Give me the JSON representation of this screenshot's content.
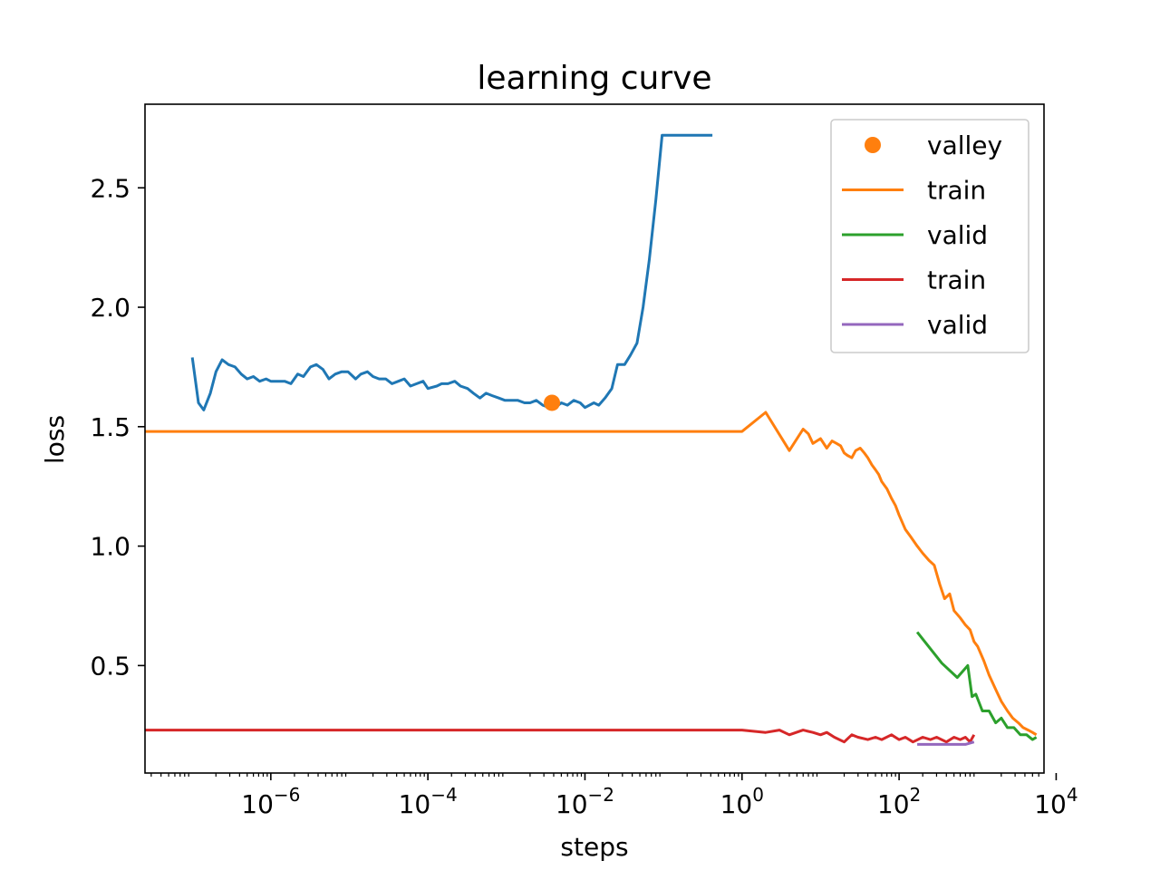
{
  "chart_data": {
    "type": "line",
    "title": "learning curve",
    "xlabel": "steps",
    "ylabel": "loss",
    "xscale": "log",
    "xlim": [
      2.5e-08,
      7000
    ],
    "ylim": [
      0.05,
      2.85
    ],
    "grid": false,
    "legend_position": "top-right",
    "x_ticks": [
      {
        "value": 1e-06,
        "base": "10",
        "exp": "−6"
      },
      {
        "value": 0.0001,
        "base": "10",
        "exp": "−4"
      },
      {
        "value": 0.01,
        "base": "10",
        "exp": "−2"
      },
      {
        "value": 1,
        "base": "10",
        "exp": "0"
      },
      {
        "value": 100,
        "base": "10",
        "exp": "2"
      },
      {
        "value": 10000,
        "base": "10",
        "exp": "4"
      }
    ],
    "y_ticks": [
      {
        "value": 0.5,
        "label": "0.5"
      },
      {
        "value": 1.0,
        "label": "1.0"
      },
      {
        "value": 1.5,
        "label": "1.5"
      },
      {
        "value": 2.0,
        "label": "2.0"
      },
      {
        "value": 2.5,
        "label": "2.5"
      }
    ],
    "series": [
      {
        "name": "",
        "color": "#1f77b4",
        "kind": "line",
        "in_legend": false,
        "x": [
          1e-07,
          1.2e-07,
          1.4e-07,
          1.7e-07,
          2e-07,
          2.4e-07,
          2.9e-07,
          3.5e-07,
          4.2e-07,
          5e-07,
          6e-07,
          7.2e-07,
          8.7e-07,
          1e-06,
          1.3e-06,
          1.5e-06,
          1.8e-06,
          2.2e-06,
          2.6e-06,
          3.2e-06,
          3.8e-06,
          4.6e-06,
          5.5e-06,
          6.6e-06,
          8e-06,
          9.6e-06,
          1.2e-05,
          1.4e-05,
          1.7e-05,
          2e-05,
          2.4e-05,
          2.9e-05,
          3.5e-05,
          4.2e-05,
          5e-05,
          6e-05,
          7.2e-05,
          8.7e-05,
          0.0001,
          0.00013,
          0.00015,
          0.00018,
          0.00022,
          0.00026,
          0.00032,
          0.00038,
          0.00046,
          0.00055,
          0.00066,
          0.0008,
          0.00096,
          0.0012,
          0.0014,
          0.0017,
          0.002,
          0.0024,
          0.0029,
          0.0035,
          0.0042,
          0.005,
          0.006,
          0.0072,
          0.0087,
          0.01,
          0.013,
          0.015,
          0.018,
          0.022,
          0.026,
          0.032,
          0.038,
          0.046,
          0.055,
          0.066,
          0.08,
          0.096,
          0.115,
          0.14,
          0.165,
          0.2,
          0.24,
          0.29,
          0.35,
          0.42
        ],
        "y": [
          1.79,
          1.6,
          1.57,
          1.64,
          1.73,
          1.78,
          1.76,
          1.75,
          1.72,
          1.7,
          1.71,
          1.69,
          1.7,
          1.69,
          1.69,
          1.69,
          1.68,
          1.72,
          1.71,
          1.75,
          1.76,
          1.74,
          1.7,
          1.72,
          1.73,
          1.73,
          1.7,
          1.72,
          1.73,
          1.71,
          1.7,
          1.7,
          1.68,
          1.69,
          1.7,
          1.67,
          1.68,
          1.69,
          1.66,
          1.67,
          1.68,
          1.68,
          1.69,
          1.67,
          1.66,
          1.64,
          1.62,
          1.64,
          1.63,
          1.62,
          1.61,
          1.61,
          1.61,
          1.6,
          1.6,
          1.61,
          1.59,
          1.58,
          1.58,
          1.6,
          1.59,
          1.61,
          1.6,
          1.58,
          1.6,
          1.59,
          1.62,
          1.66,
          1.76,
          1.76,
          1.8,
          1.85,
          2.0,
          2.2,
          2.45,
          2.72,
          2.72,
          2.72,
          2.72,
          2.72,
          2.72,
          2.72,
          2.72,
          2.72
        ]
      },
      {
        "name": "valley",
        "color": "#ff7f0e",
        "kind": "marker",
        "in_legend": true,
        "x": [
          0.0038
        ],
        "y": [
          1.6
        ]
      },
      {
        "name": "train",
        "color": "#ff7f0e",
        "kind": "line",
        "in_legend": true,
        "x": [
          2.5e-08,
          1,
          2,
          4,
          6,
          7,
          8,
          10,
          12,
          14,
          16,
          18,
          20,
          22,
          25,
          28,
          32,
          36,
          40,
          45,
          50,
          55,
          60,
          70,
          80,
          90,
          100,
          120,
          140,
          170,
          200,
          240,
          280,
          330,
          380,
          440,
          500,
          600,
          700,
          800,
          900,
          1000,
          1200,
          1400,
          1700,
          2000,
          2400,
          2800,
          3300,
          3800,
          4400,
          5000,
          5600
        ],
        "y": [
          1.48,
          1.48,
          1.56,
          1.4,
          1.49,
          1.47,
          1.43,
          1.45,
          1.41,
          1.44,
          1.43,
          1.42,
          1.39,
          1.38,
          1.37,
          1.4,
          1.41,
          1.39,
          1.37,
          1.34,
          1.32,
          1.3,
          1.27,
          1.24,
          1.2,
          1.17,
          1.13,
          1.07,
          1.04,
          1.0,
          0.97,
          0.94,
          0.92,
          0.84,
          0.78,
          0.8,
          0.73,
          0.7,
          0.67,
          0.65,
          0.6,
          0.58,
          0.52,
          0.46,
          0.4,
          0.35,
          0.31,
          0.28,
          0.26,
          0.24,
          0.23,
          0.22,
          0.21
        ]
      },
      {
        "name": "valid",
        "color": "#2ca02c",
        "kind": "line",
        "in_legend": true,
        "x": [
          170,
          350,
          550,
          750,
          850,
          950,
          1150,
          1400,
          1700,
          2000,
          2400,
          2900,
          3500,
          4200,
          5000,
          5600
        ],
        "y": [
          0.64,
          0.51,
          0.45,
          0.5,
          0.37,
          0.38,
          0.31,
          0.31,
          0.26,
          0.28,
          0.24,
          0.24,
          0.21,
          0.21,
          0.19,
          0.2
        ]
      },
      {
        "name": "train",
        "color": "#d62728",
        "kind": "line",
        "in_legend": true,
        "x": [
          2.5e-08,
          1,
          2,
          3,
          4,
          6,
          8,
          10,
          12,
          15,
          20,
          25,
          30,
          40,
          50,
          60,
          80,
          100,
          120,
          150,
          200,
          250,
          300,
          400,
          500,
          600,
          700,
          800,
          900
        ],
        "y": [
          0.23,
          0.23,
          0.22,
          0.23,
          0.21,
          0.23,
          0.22,
          0.21,
          0.22,
          0.2,
          0.18,
          0.21,
          0.2,
          0.19,
          0.2,
          0.19,
          0.21,
          0.19,
          0.2,
          0.18,
          0.2,
          0.19,
          0.2,
          0.18,
          0.2,
          0.19,
          0.2,
          0.18,
          0.21
        ]
      },
      {
        "name": "valid",
        "color": "#9467bd",
        "kind": "line",
        "in_legend": true,
        "x": [
          170,
          300,
          500,
          700,
          900
        ],
        "y": [
          0.17,
          0.17,
          0.17,
          0.17,
          0.18
        ]
      }
    ]
  }
}
